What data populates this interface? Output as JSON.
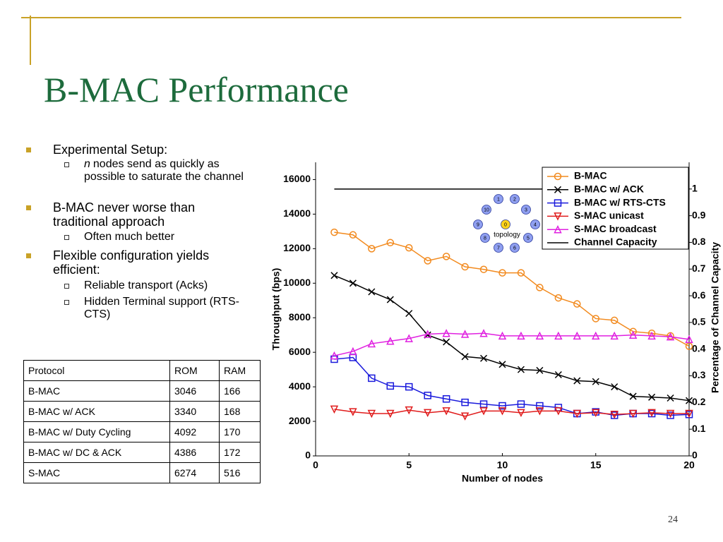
{
  "title": "B-MAC Performance",
  "bullets": [
    {
      "text": "Experimental Setup:",
      "sub": [
        {
          "italic": "n",
          "text": "nodes send as quickly as possible to saturate the channel"
        }
      ]
    },
    {
      "text": "B-MAC never worse than traditional approach",
      "sub": [
        {
          "text": "Often much better"
        }
      ]
    },
    {
      "text": "Flexible configuration yields efficient:",
      "sub": [
        {
          "text": "Reliable transport (Acks)"
        },
        {
          "text": "Hidden Terminal support (RTS-CTS)"
        }
      ]
    }
  ],
  "table": {
    "header": [
      "Protocol",
      "ROM",
      "RAM"
    ],
    "rows": [
      [
        "B-MAC",
        "3046",
        "166"
      ],
      [
        "B-MAC w/ ACK",
        "3340",
        "168"
      ],
      [
        "B-MAC w/ Duty Cycling",
        "4092",
        "170"
      ],
      [
        "B-MAC w/ DC & ACK",
        "4386",
        "172"
      ],
      [
        "S-MAC",
        "6274",
        "516"
      ]
    ]
  },
  "page_number": "24",
  "chart_data": {
    "type": "line",
    "xlabel": "Number of nodes",
    "ylabel": "Throughput (bps)",
    "y2label": "Percentage of Channel Capacity",
    "x": [
      1,
      2,
      3,
      4,
      5,
      6,
      7,
      8,
      9,
      10,
      11,
      12,
      13,
      14,
      15,
      16,
      17,
      18,
      19,
      20
    ],
    "xlim": [
      0,
      20
    ],
    "xticks": [
      0,
      5,
      10,
      15,
      20
    ],
    "ylim": [
      0,
      17000
    ],
    "yticks": [
      0,
      2000,
      4000,
      6000,
      8000,
      10000,
      12000,
      14000,
      16000
    ],
    "y2lim": [
      0,
      1.1
    ],
    "y2ticks": [
      0,
      0.1,
      0.2,
      0.3,
      0.4,
      0.5,
      0.6,
      0.7,
      0.8,
      0.9,
      1
    ],
    "legend": "upper right",
    "series": [
      {
        "name": "B-MAC",
        "color": "#f28a1e",
        "marker": "circle",
        "values": [
          12950,
          12800,
          12000,
          12350,
          12050,
          11300,
          11550,
          10950,
          10800,
          10600,
          10600,
          9750,
          9150,
          8800,
          7950,
          7850,
          7200,
          7100,
          6950,
          6350
        ]
      },
      {
        "name": "B-MAC w/ ACK",
        "color": "#000000",
        "marker": "x",
        "values": [
          10450,
          10000,
          9500,
          9050,
          8250,
          7000,
          6600,
          5750,
          5650,
          5300,
          5000,
          4950,
          4700,
          4350,
          4300,
          4000,
          3450,
          3400,
          3350,
          3200
        ]
      },
      {
        "name": "B-MAC w/ RTS-CTS",
        "color": "#1a1adc",
        "marker": "square",
        "values": [
          5600,
          5700,
          4500,
          4050,
          4000,
          3500,
          3300,
          3100,
          3000,
          2900,
          3000,
          2900,
          2800,
          2450,
          2550,
          2350,
          2450,
          2450,
          2350,
          2400
        ]
      },
      {
        "name": "S-MAC unicast",
        "color": "#e01b1b",
        "marker": "triangle-down",
        "values": [
          2700,
          2550,
          2450,
          2450,
          2650,
          2500,
          2600,
          2300,
          2600,
          2600,
          2500,
          2600,
          2600,
          2450,
          2500,
          2400,
          2450,
          2500,
          2450,
          2450
        ]
      },
      {
        "name": "S-MAC broadcast",
        "color": "#e020e0",
        "marker": "triangle-up",
        "values": [
          5800,
          6050,
          6500,
          6650,
          6800,
          7050,
          7100,
          7050,
          7100,
          6950,
          6950,
          6950,
          6950,
          6950,
          6950,
          6950,
          7000,
          6950,
          6900,
          6750
        ]
      },
      {
        "name": "Channel Capacity",
        "color": "#000000",
        "marker": "none",
        "axis": "y2",
        "x": [
          1,
          20
        ],
        "values": [
          1,
          1
        ]
      }
    ],
    "inset": {
      "label": "topology",
      "nodes": [
        "0",
        "1",
        "2",
        "3",
        "4",
        "5",
        "6",
        "7",
        "8",
        "9",
        "10"
      ]
    }
  }
}
